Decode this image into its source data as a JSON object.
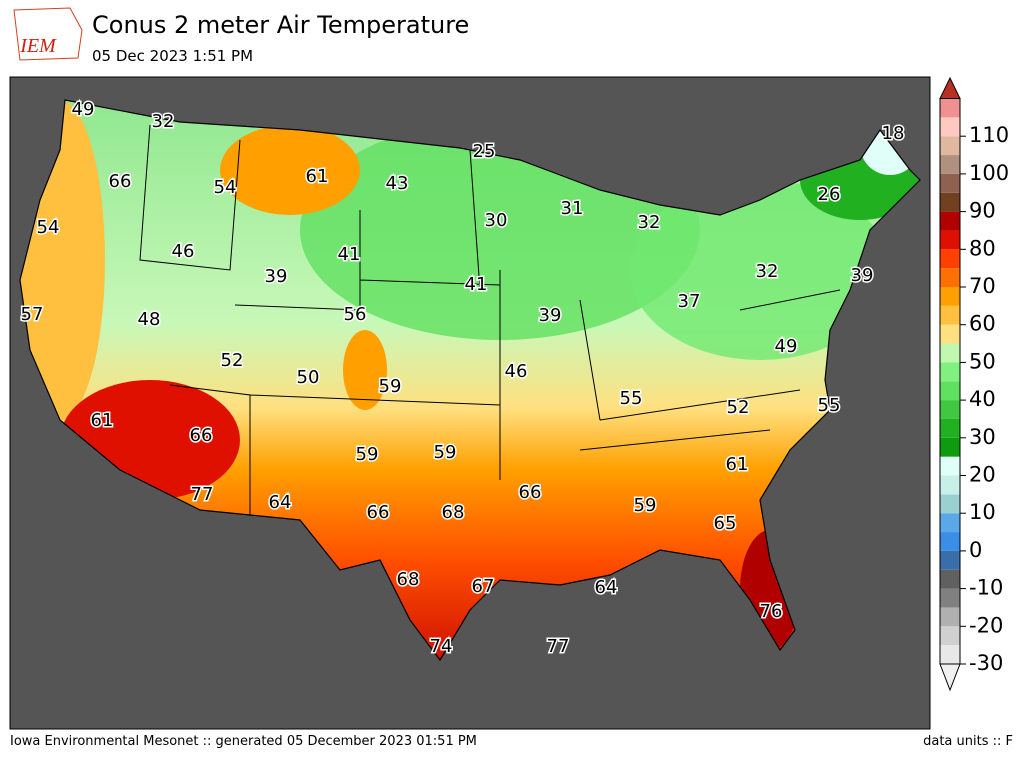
{
  "header": {
    "title": "Conus 2 meter Air Temperature",
    "subtitle": "05 Dec 2023 1:51 PM",
    "logo": "IEM"
  },
  "labels": [
    49,
    32,
    66,
    54,
    61,
    43,
    25,
    30,
    31,
    32,
    18,
    26,
    54,
    46,
    39,
    41,
    41,
    32,
    39,
    57,
    48,
    56,
    39,
    37,
    52,
    50,
    59,
    46,
    49,
    55,
    52,
    55,
    61,
    66,
    59,
    59,
    61,
    77,
    64,
    66,
    68,
    66,
    59,
    65,
    68,
    67,
    64,
    76,
    74,
    77
  ],
  "colorbar": {
    "ticks": [
      -30,
      -20,
      -10,
      0,
      10,
      20,
      30,
      40,
      50,
      60,
      70,
      80,
      90,
      100,
      110
    ],
    "colors": [
      "#e8e8e8",
      "#d0d0d0",
      "#b0b0b0",
      "#808080",
      "#606060",
      "#3a6ea8",
      "#3a8ee8",
      "#5aa8e8",
      "#9ad0d0",
      "#c8f0e8",
      "#e0fff8",
      "#109a10",
      "#20b020",
      "#40c840",
      "#60e060",
      "#80f080",
      "#c0f8b0",
      "#ffe080",
      "#ffc040",
      "#ffa000",
      "#ff7000",
      "#ff4000",
      "#e01000",
      "#b00000",
      "#704020",
      "#906050",
      "#b09080",
      "#e0b8a0",
      "#ffc8c0",
      "#f09090"
    ]
  },
  "footer": {
    "left": "Iowa Environmental Mesonet :: generated 05 December 2023 01:51 PM",
    "right": "data units :: F"
  }
}
